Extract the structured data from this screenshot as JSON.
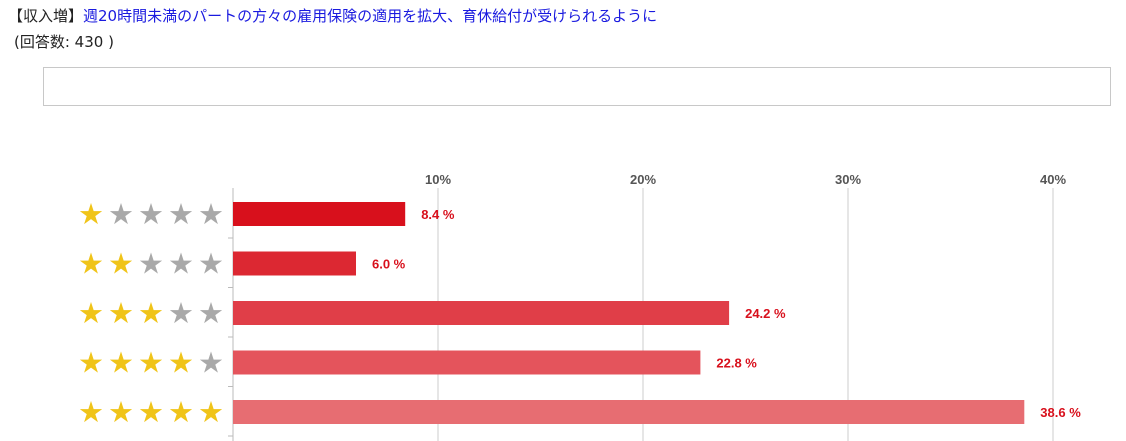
{
  "question": {
    "tag": "【収入増】",
    "title": "週20時間未満のパートの方々の雇用保険の適用を拡大、育休給付が受けられるように",
    "response_count": "(回答数: 430 )"
  },
  "colors": {
    "star_on": "#f0c419",
    "star_off": "#a9a9a9",
    "bars": [
      "#d8101c",
      "#dc2832",
      "#e03e48",
      "#e4545c",
      "#e76d72"
    ],
    "label": "#d8101c",
    "axis_text": "#555555",
    "grid": "#cccccc"
  },
  "chart_data": {
    "type": "bar",
    "orientation": "horizontal",
    "categories": [
      {
        "stars": 1,
        "max_stars": 5
      },
      {
        "stars": 2,
        "max_stars": 5
      },
      {
        "stars": 3,
        "max_stars": 5
      },
      {
        "stars": 4,
        "max_stars": 5
      },
      {
        "stars": 5,
        "max_stars": 5
      }
    ],
    "values": [
      8.4,
      6.0,
      24.2,
      22.8,
      38.6
    ],
    "value_labels": [
      "8.4 %",
      "6.0 %",
      "24.2 %",
      "22.8 %",
      "38.6 %"
    ],
    "xticks": [
      10,
      20,
      30,
      40
    ],
    "xtick_labels": [
      "10%",
      "20%",
      "30%",
      "40%"
    ],
    "xlim": [
      0,
      43
    ],
    "grid": true,
    "title": "",
    "xlabel": "",
    "ylabel": ""
  }
}
